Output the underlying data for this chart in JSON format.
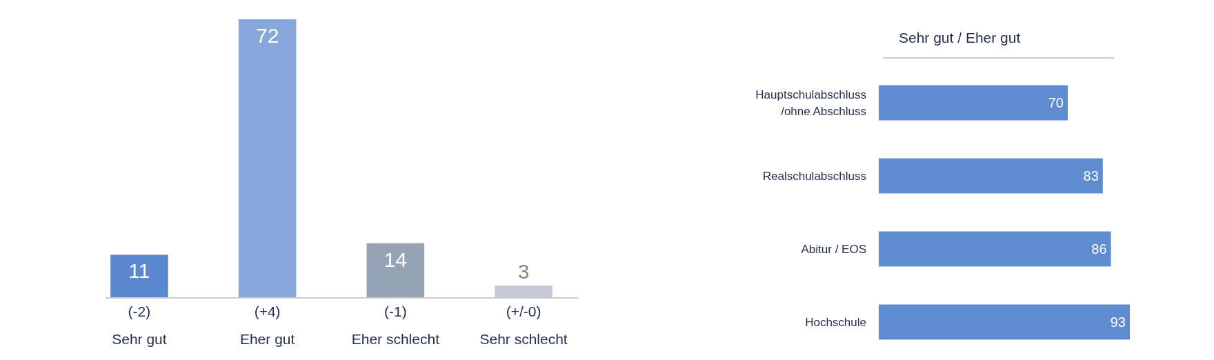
{
  "chart_data": [
    {
      "type": "bar",
      "categories": [
        "(-2)\nSehr gut",
        "(+4)\nEher gut",
        "(-1)\nEher schlecht",
        "(+/-0)\nSehr schlecht"
      ],
      "values": [
        11,
        72,
        14,
        3
      ],
      "colors": [
        "#5b87cf",
        "#87a6d9",
        "#95a3b5",
        "#c3cad5"
      ],
      "data_labels": true
    },
    {
      "type": "bar",
      "orientation": "horizontal",
      "title": "Sehr gut / Eher gut",
      "categories": [
        "Hauptschulabschluss\n/ohne Abschluss",
        "Realschulabschluss",
        "Abitur / EOS",
        "Hochschule"
      ],
      "values": [
        70,
        83,
        86,
        93
      ],
      "color": "#5f8bd0",
      "data_labels": true
    }
  ]
}
